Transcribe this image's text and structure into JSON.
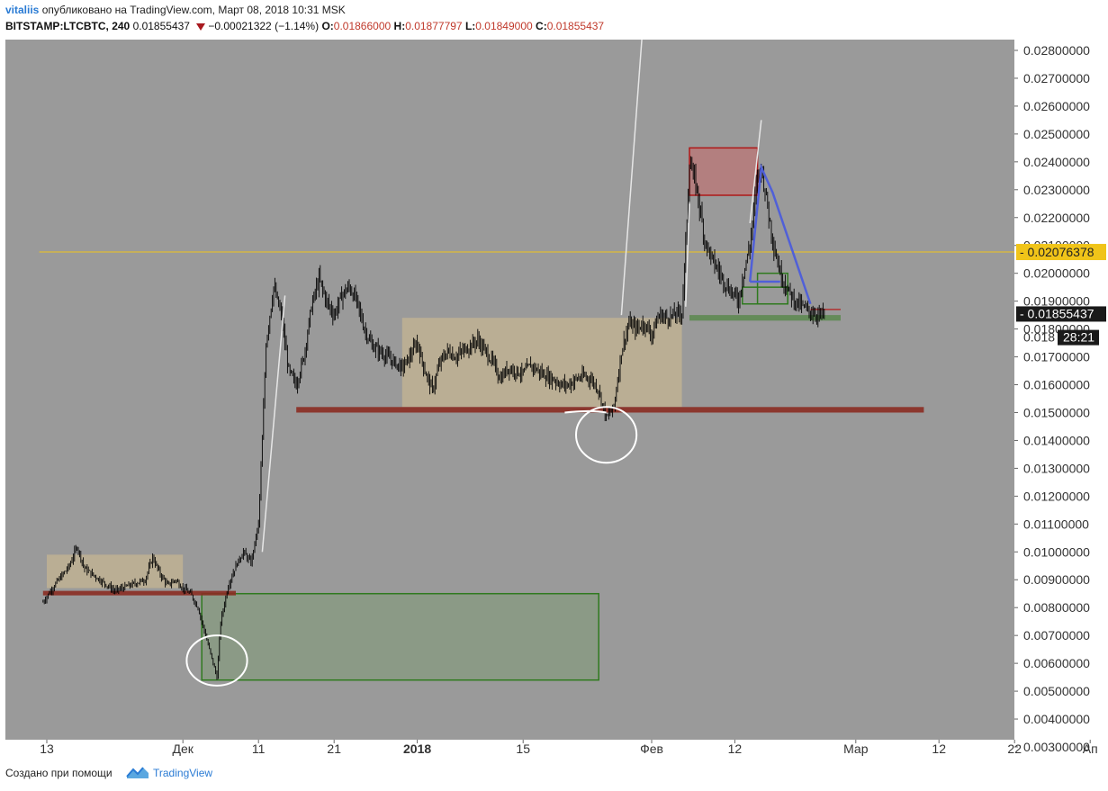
{
  "header": {
    "author": "vitaliis",
    "published": " опубликовано на TradingView.com, Март 08, 2018 10:31 MSK",
    "symbol": "BITSTAMP:LTCBTC, 240",
    "last": "0.01855437",
    "change": "−0.00021322 (−1.14%)",
    "o_label": "O:",
    "o_value": "0.01866000",
    "h_label": "H:",
    "h_value": "0.01877797",
    "l_label": "L:",
    "l_value": "0.01849000",
    "c_label": "C:",
    "c_value": "0.01855437"
  },
  "footer": {
    "created_with": "Создано при помощи",
    "brand": "TradingView"
  },
  "colors": {
    "background": "#9a9a9a",
    "candle": "#000000",
    "yellow_line": "#f0c419",
    "red_zone": "#8b2c22",
    "green_zone": "#3a6b2a",
    "beige_zone": "#d6c08f",
    "blue_line": "#5060d8"
  },
  "chart_data": {
    "type": "candlestick",
    "symbol": "BITSTAMP:LTCBTC",
    "timeframe": "240",
    "ylim": [
      0.003,
      0.028
    ],
    "y_ticks": [
      "0.00300000",
      "0.00400000",
      "0.00500000",
      "0.00600000",
      "0.00700000",
      "0.00800000",
      "0.00900000",
      "0.01000000",
      "0.01100000",
      "0.01200000",
      "0.01300000",
      "0.01400000",
      "0.01500000",
      "0.01600000",
      "0.01700000",
      "0.01800000",
      "0.01900000",
      "0.02000000",
      "0.02100000",
      "0.02200000",
      "0.02300000",
      "0.02400000",
      "0.02500000",
      "0.02600000",
      "0.02700000",
      "0.02800000"
    ],
    "x_ticks": [
      {
        "label": "13",
        "day": 0
      },
      {
        "label": "Дек",
        "day": 18
      },
      {
        "label": "11",
        "day": 28
      },
      {
        "label": "21",
        "day": 38
      },
      {
        "label": "2018",
        "day": 49
      },
      {
        "label": "15",
        "day": 63
      },
      {
        "label": "Фев",
        "day": 80
      },
      {
        "label": "12",
        "day": 91
      },
      {
        "label": "Мар",
        "day": 107
      },
      {
        "label": "12",
        "day": 118
      },
      {
        "label": "22",
        "day": 128
      },
      {
        "label": "Ап",
        "day": 138
      }
    ],
    "price_marks": [
      {
        "label": "0.02076378",
        "value": 0.02076378,
        "style": "yellow"
      },
      {
        "label": "0.01855437",
        "value": 0.01855437,
        "style": "dark"
      },
      {
        "label": "0.018",
        "value": 0.018,
        "style": "plain"
      },
      {
        "label": "28:21",
        "value": 0.018,
        "style": "timer"
      }
    ],
    "horizontal_lines": [
      {
        "value": 0.02076378,
        "from_day": -1,
        "to_day": 140,
        "style": "yellow"
      }
    ],
    "price_path": [
      [
        -0.5,
        0.0082
      ],
      [
        1,
        0.0088
      ],
      [
        3,
        0.0095
      ],
      [
        4,
        0.0102
      ],
      [
        5,
        0.0094
      ],
      [
        7,
        0.009
      ],
      [
        9,
        0.0086
      ],
      [
        11,
        0.0088
      ],
      [
        13,
        0.009
      ],
      [
        14,
        0.0098
      ],
      [
        15,
        0.0092
      ],
      [
        16,
        0.0088
      ],
      [
        17,
        0.009
      ],
      [
        18,
        0.0087
      ],
      [
        19,
        0.0085
      ],
      [
        20,
        0.008
      ],
      [
        21,
        0.007
      ],
      [
        22,
        0.006
      ],
      [
        22.5,
        0.0055
      ],
      [
        23,
        0.0075
      ],
      [
        24,
        0.0088
      ],
      [
        25,
        0.0095
      ],
      [
        26,
        0.01
      ],
      [
        27,
        0.0096
      ],
      [
        28,
        0.011
      ],
      [
        28.5,
        0.014
      ],
      [
        29,
        0.0175
      ],
      [
        30,
        0.0195
      ],
      [
        31,
        0.0185
      ],
      [
        32,
        0.0165
      ],
      [
        33,
        0.016
      ],
      [
        34,
        0.017
      ],
      [
        35,
        0.0188
      ],
      [
        36,
        0.0198
      ],
      [
        37,
        0.019
      ],
      [
        38,
        0.0185
      ],
      [
        39,
        0.0192
      ],
      [
        40,
        0.0195
      ],
      [
        41,
        0.019
      ],
      [
        42,
        0.018
      ],
      [
        43,
        0.0174
      ],
      [
        44,
        0.0172
      ],
      [
        45,
        0.017
      ],
      [
        46,
        0.0168
      ],
      [
        47,
        0.0166
      ],
      [
        48,
        0.017
      ],
      [
        49,
        0.0175
      ],
      [
        50,
        0.0165
      ],
      [
        51,
        0.0158
      ],
      [
        52,
        0.0168
      ],
      [
        53,
        0.0172
      ],
      [
        54,
        0.017
      ],
      [
        55,
        0.0172
      ],
      [
        56,
        0.0174
      ],
      [
        57,
        0.0176
      ],
      [
        58,
        0.0172
      ],
      [
        59,
        0.0168
      ],
      [
        60,
        0.0162
      ],
      [
        61,
        0.0166
      ],
      [
        62,
        0.0165
      ],
      [
        63,
        0.0164
      ],
      [
        64,
        0.0167
      ],
      [
        65,
        0.0165
      ],
      [
        66,
        0.0163
      ],
      [
        67,
        0.0162
      ],
      [
        68,
        0.016
      ],
      [
        69,
        0.016
      ],
      [
        70,
        0.0162
      ],
      [
        71,
        0.0163
      ],
      [
        72,
        0.0162
      ],
      [
        73,
        0.0158
      ],
      [
        74,
        0.0148
      ],
      [
        75,
        0.0152
      ],
      [
        76,
        0.0172
      ],
      [
        77,
        0.0182
      ],
      [
        78,
        0.018
      ],
      [
        79,
        0.0182
      ],
      [
        80,
        0.0178
      ],
      [
        81,
        0.0185
      ],
      [
        82,
        0.0184
      ],
      [
        83,
        0.0185
      ],
      [
        84,
        0.0186
      ],
      [
        84.5,
        0.021
      ],
      [
        85,
        0.024
      ],
      [
        86,
        0.023
      ],
      [
        87,
        0.0212
      ],
      [
        88,
        0.0205
      ],
      [
        89,
        0.02
      ],
      [
        90,
        0.0195
      ],
      [
        91,
        0.0192
      ],
      [
        91.5,
        0.019
      ],
      [
        92,
        0.0198
      ],
      [
        93,
        0.021
      ],
      [
        94,
        0.0235
      ],
      [
        94.5,
        0.0238
      ],
      [
        95,
        0.023
      ],
      [
        96,
        0.0212
      ],
      [
        97,
        0.02
      ],
      [
        98,
        0.0194
      ],
      [
        99,
        0.019
      ],
      [
        100,
        0.0188
      ],
      [
        101,
        0.0186
      ],
      [
        102,
        0.0185
      ],
      [
        103,
        0.01855437
      ]
    ],
    "annotations": {
      "zones": [
        {
          "kind": "beige",
          "x0": 0,
          "x1": 18,
          "y0": 0.0087,
          "y1": 0.0099
        },
        {
          "kind": "beige",
          "x0": 47,
          "x1": 84,
          "y0": 0.0152,
          "y1": 0.0184
        },
        {
          "kind": "red_box",
          "x0": 85,
          "x1": 94,
          "y0": 0.0228,
          "y1": 0.0245
        },
        {
          "kind": "green_box",
          "x0": 20.5,
          "x1": 73,
          "y0": 0.0054,
          "y1": 0.0085
        },
        {
          "kind": "green_outline",
          "x0": 94,
          "x1": 98,
          "y0": 0.0189,
          "y1": 0.02
        },
        {
          "kind": "green_outline",
          "x0": 92,
          "x1": 98,
          "y0": 0.0189,
          "y1": 0.0195
        },
        {
          "kind": "red_band",
          "x0": -0.5,
          "x1": 25,
          "y0": 0.0085,
          "y1": 0.0086
        },
        {
          "kind": "red_band",
          "x0": 33,
          "x1": 116,
          "y0": 0.015,
          "y1": 0.0152
        },
        {
          "kind": "green_band",
          "x0": 85,
          "x1": 105,
          "y0": 0.0183,
          "y1": 0.0185
        },
        {
          "kind": "red_thin",
          "x0": 101,
          "x1": 105,
          "y0": 0.0187,
          "y1": 0.0187
        }
      ],
      "lines": [
        {
          "kind": "white",
          "points": [
            [
              28.5,
              0.01
            ],
            [
              31.5,
              0.0192
            ]
          ]
        },
        {
          "kind": "white",
          "points": [
            [
              76,
              0.0185
            ],
            [
              79,
              0.0295
            ]
          ]
        },
        {
          "kind": "white",
          "points": [
            [
              84.5,
              0.0188
            ],
            [
              85,
              0.0225
            ]
          ]
        },
        {
          "kind": "white",
          "points": [
            [
              93,
              0.0218
            ],
            [
              94.5,
              0.0255
            ]
          ]
        },
        {
          "kind": "blue",
          "points": [
            [
              93,
              0.0197
            ],
            [
              94.5,
              0.0238
            ],
            [
              96,
              0.0229
            ],
            [
              101,
              0.0189
            ]
          ]
        },
        {
          "kind": "blue",
          "points": [
            [
              93,
              0.0197
            ],
            [
              97,
              0.0197
            ]
          ]
        }
      ],
      "circles": [
        {
          "cx": 22.5,
          "cy": 0.0061,
          "rx": 4,
          "ry": 0.0009
        },
        {
          "cx": 74,
          "cy": 0.0142,
          "rx": 4,
          "ry": 0.001
        }
      ],
      "curves": [
        {
          "points": [
            [
              68.5,
              0.015
            ],
            [
              72,
              0.0151
            ],
            [
              74,
              0.015
            ]
          ]
        }
      ]
    }
  }
}
